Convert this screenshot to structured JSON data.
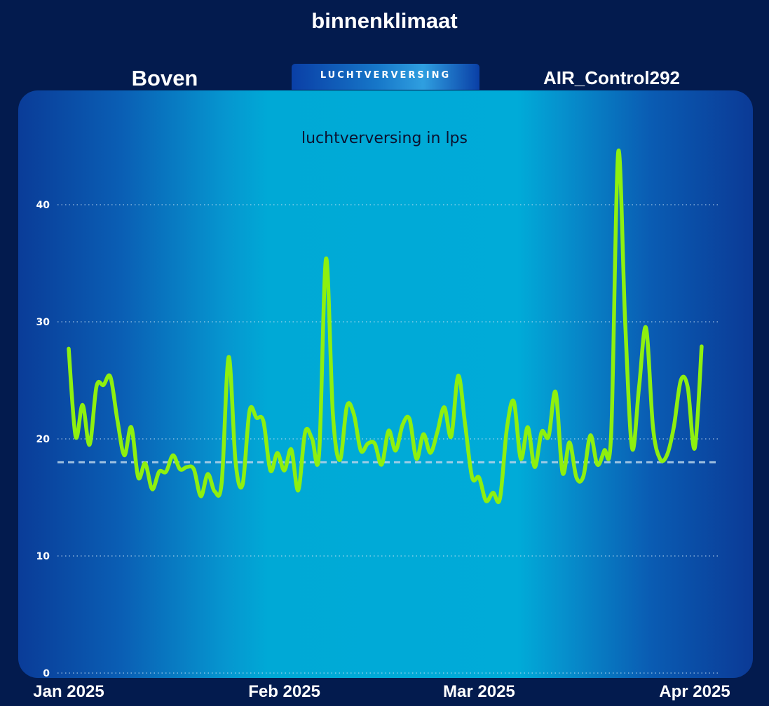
{
  "header": {
    "title": "binnenklimaat",
    "location": "Boven",
    "device": "AIR_Control292",
    "tab_label": "LUCHTVERVERSING"
  },
  "colors": {
    "background": "#031b4e",
    "line": "#8ef00f",
    "reference_line": "#b8d4ea",
    "gridline": "#cfe6f5",
    "axis_text": "#ffffff",
    "chart_title_text": "#0b1230"
  },
  "chart_data": {
    "type": "line",
    "title": "luchtverversing in lps",
    "xlabel": "",
    "ylabel": "",
    "ylim": [
      0,
      45
    ],
    "yticks": [
      0,
      10,
      20,
      30,
      40
    ],
    "ytick_labels": [
      "0",
      "10",
      "20",
      "30",
      "40"
    ],
    "xlim": [
      "2025-01-01",
      "2025-04-01"
    ],
    "xticks": [
      "2025-01-01",
      "2025-02-01",
      "2025-03-01",
      "2025-04-01"
    ],
    "xtick_labels": [
      "Jan 2025",
      "Feb 2025",
      "Mar 2025",
      "Apr 2025"
    ],
    "grid": "horizontal dotted",
    "reference_line": {
      "style": "dashed",
      "y": 18
    },
    "series": [
      {
        "x": [
          "2025-01-01",
          "2025-01-02",
          "2025-01-03",
          "2025-01-04",
          "2025-01-05",
          "2025-01-06",
          "2025-01-07",
          "2025-01-08",
          "2025-01-09",
          "2025-01-10",
          "2025-01-11",
          "2025-01-12",
          "2025-01-13",
          "2025-01-14",
          "2025-01-15",
          "2025-01-16",
          "2025-01-17",
          "2025-01-18",
          "2025-01-19",
          "2025-01-20",
          "2025-01-21",
          "2025-01-22",
          "2025-01-23",
          "2025-01-24",
          "2025-01-25",
          "2025-01-26",
          "2025-01-27",
          "2025-01-28",
          "2025-01-29",
          "2025-01-30",
          "2025-01-31",
          "2025-02-01",
          "2025-02-02",
          "2025-02-03",
          "2025-02-04",
          "2025-02-05",
          "2025-02-06",
          "2025-02-07",
          "2025-02-08",
          "2025-02-09",
          "2025-02-10",
          "2025-02-11",
          "2025-02-12",
          "2025-02-13",
          "2025-02-14",
          "2025-02-15",
          "2025-02-16",
          "2025-02-17",
          "2025-02-18",
          "2025-02-19",
          "2025-02-20",
          "2025-02-21",
          "2025-02-22",
          "2025-02-23",
          "2025-02-24",
          "2025-02-25",
          "2025-02-26",
          "2025-02-27",
          "2025-02-28",
          "2025-03-01",
          "2025-03-02",
          "2025-03-03",
          "2025-03-04",
          "2025-03-05",
          "2025-03-06",
          "2025-03-07",
          "2025-03-08",
          "2025-03-09",
          "2025-03-10",
          "2025-03-11",
          "2025-03-12",
          "2025-03-13",
          "2025-03-14",
          "2025-03-15",
          "2025-03-16",
          "2025-03-17",
          "2025-03-18",
          "2025-03-19",
          "2025-03-20",
          "2025-03-21",
          "2025-03-22",
          "2025-03-23",
          "2025-03-24",
          "2025-03-25",
          "2025-03-26",
          "2025-03-27",
          "2025-03-28",
          "2025-03-29",
          "2025-03-30",
          "2025-03-31",
          "2025-04-01",
          "2025-04-02"
        ],
        "values": [
          27.7,
          20.2,
          22.9,
          19.5,
          24.5,
          24.6,
          25.3,
          21.6,
          18.6,
          21.0,
          16.7,
          17.9,
          15.7,
          17.2,
          17.2,
          18.6,
          17.4,
          17.6,
          17.4,
          15.1,
          17.0,
          15.5,
          16.3,
          27.0,
          18.0,
          16.1,
          22.4,
          21.8,
          21.5,
          17.3,
          18.8,
          17.3,
          19.1,
          15.6,
          20.6,
          20.0,
          18.7,
          35.4,
          22.0,
          18.2,
          22.8,
          22.1,
          19.0,
          19.6,
          19.6,
          17.8,
          20.7,
          19.0,
          21.2,
          21.7,
          18.3,
          20.4,
          18.8,
          20.6,
          22.7,
          20.2,
          25.4,
          21.2,
          16.7,
          16.7,
          14.7,
          15.4,
          14.9,
          20.9,
          23.2,
          18.3,
          21.0,
          17.6,
          20.6,
          20.2,
          24.0,
          17.1,
          19.7,
          16.7,
          16.8,
          20.3,
          17.8,
          19.0,
          20.5,
          44.5,
          30.0,
          19.2,
          24.4,
          29.5,
          21.0,
          18.3,
          18.6,
          21.0,
          25.0,
          24.4,
          19.2,
          27.9
        ]
      }
    ]
  }
}
